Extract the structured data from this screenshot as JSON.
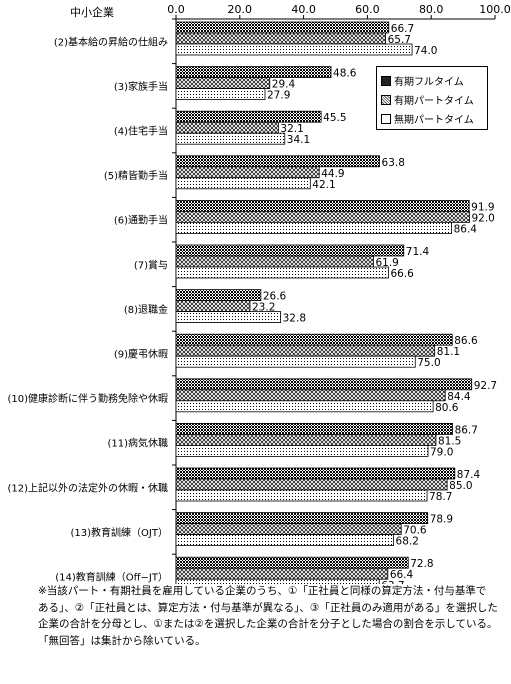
{
  "chart_data": {
    "type": "bar",
    "orientation": "horizontal",
    "panel_label": "中小企業",
    "xlim": [
      0,
      100
    ],
    "x_ticks": [
      "0.0",
      "20.0",
      "40.0",
      "60.0",
      "80.0",
      "100.0"
    ],
    "grid": false,
    "legend_position": "top-right",
    "categories": [
      "(2)基本給の昇給の仕組み",
      "(3)家族手当",
      "(4)住宅手当",
      "(5)精皆勤手当",
      "(6)通勤手当",
      "(7)賞与",
      "(8)退職金",
      "(9)慶弔休暇",
      "(10)健康診断に伴う勤務免除や休暇",
      "(11)病気休職",
      "(12)上記以外の法定外の休暇・休職",
      "(13)教育訓練（OJT）",
      "(14)教育訓練（Off−JT）"
    ],
    "series": [
      {
        "name": "有期フルタイム",
        "color": "#2a2a2a",
        "values": [
          66.7,
          48.6,
          45.5,
          63.8,
          91.9,
          71.4,
          26.6,
          86.6,
          92.7,
          86.7,
          87.4,
          78.9,
          72.8
        ]
      },
      {
        "name": "有期パートタイム",
        "color": "#9a9a9a",
        "values": [
          65.7,
          29.4,
          32.1,
          44.9,
          92.0,
          61.9,
          23.2,
          81.1,
          84.4,
          81.5,
          85.0,
          70.6,
          66.4
        ]
      },
      {
        "name": "無期パートタイム",
        "color": "#ffffff",
        "values": [
          74.0,
          27.9,
          34.1,
          42.1,
          86.4,
          66.6,
          32.8,
          75.0,
          80.6,
          79.0,
          78.7,
          68.2,
          63.7
        ]
      }
    ]
  },
  "footnote": [
    "※当該パート・有期社員を雇用している企業のうち、①「正社員と同様の算定方法・付与基準で",
    "ある」、②「正社員とは、算定方法・付与基準が異なる」、③「正社員のみ適用がある」を選択した",
    "企業の合計を分母とし、①または②を選択した企業の合計を分子とした場合の割合を示している。",
    "「無回答」は集計から除いている。"
  ]
}
